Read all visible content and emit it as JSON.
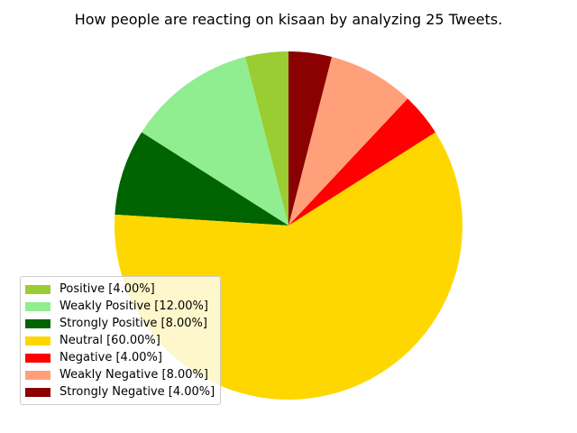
{
  "chart_data": {
    "type": "pie",
    "title": "How people are reacting on kisaan by analyzing 25 Tweets.",
    "start_angle_deg": 90,
    "direction": "counterclockwise",
    "legend_position": "lower-left",
    "slices": [
      {
        "label": "Positive [4.00%]",
        "value": 4.0,
        "color": "#9acd32"
      },
      {
        "label": "Weakly Positive [12.00%]",
        "value": 12.0,
        "color": "#90ee90"
      },
      {
        "label": "Strongly Positive [8.00%]",
        "value": 8.0,
        "color": "#006400"
      },
      {
        "label": "Neutral [60.00%]",
        "value": 60.0,
        "color": "#ffd700"
      },
      {
        "label": "Negative [4.00%]",
        "value": 4.0,
        "color": "#ff0000"
      },
      {
        "label": "Weakly Negative [8.00%]",
        "value": 8.0,
        "color": "#ffa07a"
      },
      {
        "label": "Strongly Negative [4.00%]",
        "value": 4.0,
        "color": "#8b0000"
      }
    ]
  }
}
